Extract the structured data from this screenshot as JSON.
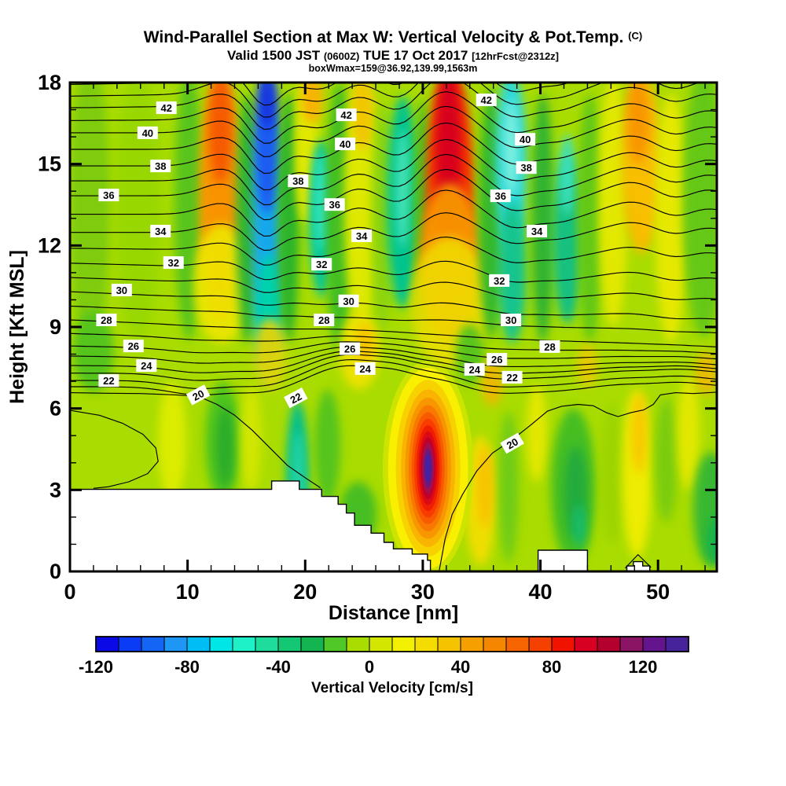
{
  "header": {
    "title": "Wind-Parallel Section at Max W: Vertical Velocity & Pot.Temp. ",
    "title_suffix": "(C)",
    "valid_prefix": "Valid 1500 JST ",
    "valid_utc": "(0600Z)",
    "valid_date": " TUE 17 Oct 2017 ",
    "fcst_tag": "[12hrFcst@2312z]",
    "box_max": "boxWmax=159@36.92,139.99,1563m"
  },
  "chart_data": {
    "type": "filled_contour_cross_section",
    "title": "Wind-Parallel Section at Max W: Vertical Velocity & Pot.Temp. (C)",
    "subtitle": "Valid 1500 JST (0600Z) TUE 17 Oct 2017 [12hrFcst@2312z]",
    "annotation": "boxWmax=159@36.92,139.99,1563m",
    "background_color": "#A9DC00",
    "x_axis": {
      "label": "Distance [nm]",
      "min": 0,
      "max": 55,
      "major_ticks": [
        0,
        10,
        20,
        30,
        40,
        50
      ],
      "minor_step": 2
    },
    "y_axis": {
      "label": "Height [Kft MSL]",
      "min": 0,
      "max": 18,
      "major_ticks": [
        0,
        3,
        6,
        9,
        12,
        15,
        18
      ],
      "minor_step": 1
    },
    "colorbar": {
      "label": "Vertical Velocity [cm/s]",
      "cell_min": -120,
      "cell_max": 140,
      "cell_step": 10,
      "tick_labels": [
        -120,
        -80,
        -40,
        0,
        40,
        80,
        120
      ],
      "palette": [
        "#0A0AE6",
        "#0A3CF5",
        "#1464F5",
        "#1E96F5",
        "#00BEF5",
        "#00E6E6",
        "#1EF0C8",
        "#1EDC9B",
        "#14C873",
        "#14B450",
        "#50C828",
        "#A9DC00",
        "#D2E600",
        "#F0F000",
        "#F5DC00",
        "#F5C300",
        "#F5A000",
        "#F58700",
        "#F56400",
        "#F54100",
        "#F01400",
        "#D70023",
        "#B4002D",
        "#8C1464",
        "#64148C",
        "#46239B"
      ]
    },
    "theta_contours": {
      "units": "C",
      "interval": 1,
      "levels_drawn": [
        21,
        22,
        23,
        24,
        25,
        26,
        27,
        28,
        29,
        30,
        31,
        32,
        33,
        34,
        35,
        36,
        37,
        38,
        39,
        40,
        41,
        42,
        43,
        44
      ],
      "base_heights_kft": {
        "20": 6.58,
        "21": 6.8,
        "22": 7.03,
        "23": 7.3,
        "24": 7.58,
        "25": 7.93,
        "26": 8.3,
        "27": 8.76,
        "28": 9.26,
        "29": 9.77,
        "30": 10.3,
        "31": 10.82,
        "32": 11.35,
        "33": 11.9,
        "34": 12.48,
        "35": 13.15,
        "36": 13.83,
        "37": 14.38,
        "38": 14.93,
        "39": 15.54,
        "40": 16.15,
        "41": 16.6,
        "42": 17.07,
        "43": 17.5,
        "44": 17.93
      },
      "slopes": {
        "24": -0.15,
        "25": -0.35,
        "26": -0.5,
        "27": -0.75,
        "28": -1.0,
        "29": -1.0,
        "30": -1.05,
        "31": -0.85,
        "32": -0.65,
        "33": -0.3,
        "41": 0.15,
        "42": 0.3,
        "43": 0.35,
        "44": 0.4
      },
      "upper_bumps": [
        [
          13,
          1.8,
          0.45
        ],
        [
          16.6,
          1.3,
          -0.95
        ],
        [
          21.3,
          1.5,
          -0.35
        ],
        [
          24.5,
          1.5,
          0.3
        ],
        [
          28.3,
          1.5,
          -0.45
        ],
        [
          31.8,
          2.2,
          1.0
        ],
        [
          37.8,
          1.6,
          -0.55
        ],
        [
          41.5,
          1.5,
          -0.3
        ],
        [
          47.8,
          2.0,
          0.5
        ],
        [
          51.5,
          1.5,
          -0.2
        ],
        [
          54,
          1.5,
          0.25
        ]
      ],
      "lower_bumps": [
        [
          11,
          2.5,
          -0.3
        ],
        [
          16.5,
          2,
          -0.2
        ],
        [
          23.5,
          2.8,
          0.75
        ],
        [
          27.8,
          1.8,
          0.35
        ],
        [
          31.5,
          2,
          0.25
        ],
        [
          36,
          2.5,
          -0.2
        ],
        [
          41,
          3,
          -0.15
        ],
        [
          47,
          2.5,
          0.1
        ],
        [
          52,
          2,
          0.15
        ]
      ]
    },
    "theta20_paths": [
      [
        [
          0,
          5.93
        ],
        [
          2.5,
          5.75
        ],
        [
          4.5,
          5.45
        ],
        [
          6.2,
          5.05
        ],
        [
          7.3,
          4.55
        ],
        [
          7.5,
          4.05
        ],
        [
          6.6,
          3.6
        ],
        [
          5,
          3.3
        ],
        [
          3.3,
          3.12
        ],
        [
          2,
          3.06
        ]
      ],
      [
        [
          0,
          6.58
        ],
        [
          3,
          6.56
        ],
        [
          6,
          6.55
        ],
        [
          9,
          6.5
        ],
        [
          10.9,
          6.45
        ],
        [
          12.5,
          6.15
        ],
        [
          14,
          5.75
        ],
        [
          15.5,
          5.2
        ],
        [
          17,
          4.55
        ],
        [
          18.5,
          3.9
        ],
        [
          20,
          3.45
        ],
        [
          21.3,
          3.08
        ]
      ],
      [
        [
          31.4,
          0.05
        ],
        [
          31.9,
          1.2
        ],
        [
          32.5,
          2.1
        ],
        [
          33.4,
          2.85
        ],
        [
          34.6,
          3.7
        ],
        [
          35.9,
          4.35
        ],
        [
          37.6,
          4.85
        ],
        [
          39.2,
          5.4
        ],
        [
          40.6,
          5.9
        ],
        [
          41.8,
          6.08
        ],
        [
          43.2,
          6.15
        ],
        [
          44.5,
          6.1
        ],
        [
          45.6,
          5.85
        ],
        [
          46.6,
          5.7
        ],
        [
          47.7,
          5.85
        ],
        [
          48.8,
          5.95
        ],
        [
          49.6,
          6.15
        ],
        [
          50.2,
          6.5
        ],
        [
          51.5,
          6.58
        ],
        [
          53,
          6.55
        ],
        [
          55,
          6.6
        ]
      ],
      [
        [
          47.2,
          0.12
        ],
        [
          48.3,
          0.62
        ],
        [
          49.4,
          0.15
        ]
      ]
    ],
    "contour_labels": [
      [
        42,
        8.2,
        17.07
      ],
      [
        40,
        6.6,
        16.15
      ],
      [
        38,
        7.7,
        14.93
      ],
      [
        36,
        3.3,
        13.86
      ],
      [
        34,
        7.7,
        12.53
      ],
      [
        32,
        8.8,
        11.37
      ],
      [
        30,
        4.4,
        10.36
      ],
      [
        28,
        3.1,
        9.26
      ],
      [
        26,
        5.4,
        8.3
      ],
      [
        24,
        6.5,
        7.58
      ],
      [
        22,
        3.3,
        7.03
      ],
      [
        20,
        10.9,
        6.5,
        -28
      ],
      [
        42,
        23.5,
        16.81
      ],
      [
        40,
        23.4,
        15.74
      ],
      [
        38,
        19.4,
        14.38
      ],
      [
        36,
        22.5,
        13.51
      ],
      [
        34,
        24.8,
        12.36
      ],
      [
        32,
        21.4,
        11.31
      ],
      [
        30,
        23.7,
        9.96
      ],
      [
        28,
        21.6,
        9.26
      ],
      [
        26,
        23.8,
        8.2
      ],
      [
        24,
        25.1,
        7.47
      ],
      [
        22,
        19.2,
        6.39,
        -28
      ],
      [
        42,
        35.4,
        17.36
      ],
      [
        40,
        38.7,
        15.91
      ],
      [
        38,
        38.8,
        14.87
      ],
      [
        36,
        36.6,
        13.83
      ],
      [
        34,
        39.7,
        12.53
      ],
      [
        32,
        36.5,
        10.71
      ],
      [
        30,
        37.5,
        9.26
      ],
      [
        28,
        40.8,
        8.28
      ],
      [
        26,
        36.3,
        7.81
      ],
      [
        24,
        34.4,
        7.44
      ],
      [
        22,
        37.6,
        7.15
      ],
      [
        20,
        37.6,
        4.72,
        -30
      ]
    ],
    "terrain_polygons": [
      [
        [
          0,
          3.02
        ],
        [
          17.15,
          3.02
        ],
        [
          17.15,
          3.33
        ],
        [
          19.5,
          3.33
        ],
        [
          19.5,
          3.02
        ],
        [
          21.4,
          3.02
        ],
        [
          21.4,
          2.76
        ],
        [
          22.8,
          2.76
        ],
        [
          22.8,
          2.47
        ],
        [
          23.5,
          2.47
        ],
        [
          23.5,
          2.15
        ],
        [
          24.2,
          2.15
        ],
        [
          24.2,
          1.7
        ],
        [
          25.6,
          1.7
        ],
        [
          25.6,
          1.41
        ],
        [
          26.7,
          1.41
        ],
        [
          26.7,
          1.07
        ],
        [
          27.5,
          1.07
        ],
        [
          27.5,
          0.83
        ],
        [
          29.1,
          0.83
        ],
        [
          29.1,
          0.64
        ],
        [
          30.4,
          0.64
        ],
        [
          30.4,
          0.41
        ],
        [
          30.65,
          0.41
        ],
        [
          30.65,
          0
        ],
        [
          0,
          0
        ]
      ],
      [
        [
          39.8,
          0
        ],
        [
          39.8,
          0.78
        ],
        [
          44,
          0.78
        ],
        [
          44,
          0
        ]
      ],
      [
        [
          47.35,
          0
        ],
        [
          47.35,
          0.2
        ],
        [
          47.9,
          0.2
        ],
        [
          47.9,
          0.36
        ],
        [
          48.7,
          0.36
        ],
        [
          48.7,
          0.2
        ],
        [
          49.3,
          0.2
        ],
        [
          49.3,
          0
        ]
      ]
    ],
    "velocity_bands": [
      [
        1.7,
        13.5,
        1.7,
        5.5,
        "#7ECC10"
      ],
      [
        5.8,
        13.5,
        2.0,
        5.0,
        "#97D806",
        0.9
      ],
      [
        10.1,
        13.5,
        1.2,
        5.0,
        "#58C41C"
      ],
      [
        2.0,
        8.1,
        1.7,
        1.5,
        "#55C41E"
      ],
      [
        12.8,
        13.8,
        1.8,
        4.6,
        "#F89400"
      ],
      [
        12.8,
        16.3,
        1.0,
        2.0,
        "#F55A00"
      ],
      [
        12.9,
        10.6,
        2.4,
        2.2,
        "#EFE600",
        0.9
      ],
      [
        15.1,
        13.0,
        0.95,
        4.6,
        "#32B432"
      ],
      [
        16.75,
        12.5,
        1.25,
        4.6,
        "#18A8EC"
      ],
      [
        16.75,
        15.8,
        1.05,
        2.6,
        "#1C5CF2"
      ],
      [
        16.8,
        17.3,
        0.6,
        1.0,
        "#1430DC"
      ],
      [
        16.9,
        9.3,
        1.15,
        2.4,
        "#00D2AC"
      ],
      [
        18.6,
        13.0,
        0.9,
        4.6,
        "#2CB42C"
      ],
      [
        20.1,
        15.6,
        1.0,
        2.8,
        "#E2E800"
      ],
      [
        20.6,
        17.4,
        0.9,
        0.9,
        "#F8B200"
      ],
      [
        21.4,
        13.0,
        1.05,
        2.9,
        "#00C8A0"
      ],
      [
        21.4,
        13.6,
        0.55,
        1.8,
        "#38E8C6"
      ],
      [
        22.9,
        13.0,
        1.15,
        5.0,
        "#42BE20"
      ],
      [
        24.8,
        13.6,
        1.5,
        4.6,
        "#DEE800"
      ],
      [
        24.9,
        16.9,
        0.9,
        1.4,
        "#F2C600"
      ],
      [
        26.6,
        13.0,
        0.95,
        4.2,
        "#8CD40C"
      ],
      [
        28.3,
        13.6,
        1.35,
        3.9,
        "#00C48E"
      ],
      [
        28.3,
        14.1,
        0.6,
        2.2,
        "#44E2B6"
      ],
      [
        30.0,
        13.2,
        0.75,
        4.2,
        "#48BE24"
      ],
      [
        32.3,
        14.0,
        2.05,
        4.6,
        "#F63600"
      ],
      [
        32.2,
        15.6,
        1.1,
        2.9,
        "#D8001E"
      ],
      [
        32.3,
        11.4,
        2.6,
        2.9,
        "#F89600",
        0.95
      ],
      [
        32.3,
        9.9,
        3.3,
        2.4,
        "#EFDE00",
        0.85
      ],
      [
        35.8,
        13.2,
        1.05,
        4.6,
        "#38B82C"
      ],
      [
        37.5,
        15.0,
        1.35,
        3.4,
        "#2AD8DA"
      ],
      [
        37.5,
        15.6,
        0.6,
        1.8,
        "#80F0DE"
      ],
      [
        37.6,
        11.0,
        1.2,
        2.6,
        "#14C48E"
      ],
      [
        40.2,
        13.0,
        0.95,
        4.6,
        "#30B430"
      ],
      [
        42.3,
        12.2,
        1.25,
        3.1,
        "#14C080"
      ],
      [
        42.3,
        14.6,
        0.7,
        1.5,
        "#3AE0BA"
      ],
      [
        44.2,
        13.0,
        1.05,
        4.6,
        "#62C816"
      ],
      [
        46.2,
        13.6,
        1.25,
        4.6,
        "#E2E800"
      ],
      [
        48.6,
        15.0,
        1.7,
        3.3,
        "#F8BE00"
      ],
      [
        48.3,
        16.6,
        0.95,
        1.6,
        "#F89600"
      ],
      [
        51.1,
        13.0,
        1.35,
        4.6,
        "#E6E800"
      ],
      [
        53.9,
        13.6,
        1.8,
        5.0,
        "#66C816"
      ],
      [
        8.7,
        4.8,
        1.2,
        2.2,
        "#DCEC00"
      ],
      [
        13.0,
        4.8,
        1.5,
        2.2,
        "#50C41C"
      ],
      [
        13.2,
        4.6,
        0.75,
        1.5,
        "#2CAC2C"
      ],
      [
        15.4,
        4.9,
        0.9,
        2.0,
        "#D8E800",
        0.85
      ],
      [
        17.0,
        8.0,
        1.4,
        1.3,
        "#F0D400",
        0.9
      ],
      [
        24.6,
        8.1,
        1.7,
        1.4,
        "#ECE200"
      ],
      [
        25.1,
        8.4,
        0.75,
        0.7,
        "#F8C200"
      ],
      [
        19.35,
        3.4,
        0.95,
        2.9,
        "#00BE8E"
      ],
      [
        19.4,
        3.3,
        0.5,
        1.9,
        "#2AD6A6"
      ],
      [
        21.9,
        4.6,
        1.1,
        2.1,
        "#55C41E"
      ],
      [
        24.5,
        2.1,
        1.6,
        1.2,
        "#46BE22"
      ],
      [
        34.0,
        8.0,
        1.2,
        1.1,
        "#58C41C"
      ],
      [
        34.9,
        2.6,
        1.3,
        2.4,
        "#EFDE00"
      ],
      [
        35.3,
        3.1,
        0.7,
        1.5,
        "#F8C200"
      ],
      [
        35.9,
        7.0,
        0.9,
        0.9,
        "#F8B400",
        0.85
      ],
      [
        37.3,
        3.1,
        0.85,
        2.8,
        "#70CC12"
      ],
      [
        39.7,
        5.1,
        0.85,
        1.8,
        "#E4E800"
      ],
      [
        42.8,
        3.1,
        1.9,
        2.9,
        "#44BE24"
      ],
      [
        43.0,
        2.9,
        0.95,
        1.7,
        "#22AA3C"
      ],
      [
        43.3,
        1.7,
        0.5,
        0.8,
        "#16BE70"
      ],
      [
        44.0,
        7.6,
        0.85,
        0.8,
        "#F0C800",
        0.85
      ],
      [
        46.1,
        3.6,
        0.95,
        2.6,
        "#9CD400"
      ],
      [
        48.2,
        3.6,
        1.25,
        3.1,
        "#EEEC00"
      ],
      [
        48.4,
        5.1,
        0.65,
        1.5,
        "#F8C800"
      ],
      [
        50.7,
        4.1,
        0.95,
        2.3,
        "#7ACC10"
      ],
      [
        52.6,
        5.1,
        0.95,
        2.1,
        "#E2E800"
      ],
      [
        54.1,
        7.3,
        0.95,
        0.8,
        "#F8B400",
        0.8
      ],
      [
        54.5,
        2.3,
        1.5,
        2.1,
        "#38B830"
      ],
      [
        55.0,
        1.1,
        0.85,
        0.9,
        "#18B24C"
      ]
    ],
    "updraft_rings": {
      "center_nm": 30.45,
      "center_kft": 3.8,
      "max_w_cms": 159,
      "rings": [
        [
          3.85,
          3.95,
          "#CCE400"
        ],
        [
          3.4,
          3.7,
          "#F8F000"
        ],
        [
          2.75,
          3.25,
          "#F8D200"
        ],
        [
          2.3,
          2.9,
          "#F8B400"
        ],
        [
          1.95,
          2.6,
          "#F89600"
        ],
        [
          1.65,
          2.32,
          "#F87800"
        ],
        [
          1.4,
          2.06,
          "#F85A00"
        ],
        [
          1.18,
          1.82,
          "#F83C00"
        ],
        [
          0.98,
          1.58,
          "#F01E00"
        ],
        [
          0.8,
          1.36,
          "#DC0A14"
        ],
        [
          0.64,
          1.14,
          "#C00028"
        ],
        [
          0.5,
          0.93,
          "#A01050"
        ],
        [
          0.38,
          0.73,
          "#70187A"
        ],
        [
          0.27,
          0.53,
          "#4622A0"
        ]
      ]
    }
  }
}
